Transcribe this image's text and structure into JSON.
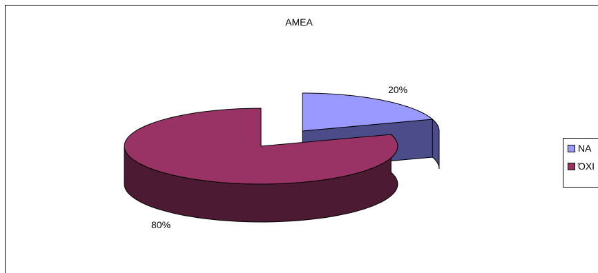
{
  "chart_data": {
    "type": "pie",
    "title": "AMEA",
    "categories": [
      "ΝΑΙ",
      "ΌΧΙ"
    ],
    "values": [
      20,
      80
    ],
    "labels": [
      "20%",
      "80%"
    ],
    "colors": {
      "ΝΑΙ": {
        "top": "#9999FF",
        "side": "#4C4C8A"
      },
      "ΌΧΙ": {
        "top": "#993366",
        "side": "#4C1A33"
      }
    },
    "legend_position": "right",
    "three_d": true
  },
  "legend": {
    "items": [
      {
        "label": "ΝΑ",
        "color": "#9999FF"
      },
      {
        "label": "ΌΧΙ",
        "color": "#993366"
      }
    ]
  }
}
